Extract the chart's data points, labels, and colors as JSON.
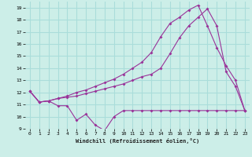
{
  "xlabel": "Windchill (Refroidissement éolien,°C)",
  "bg_color": "#cceee8",
  "grid_color": "#aaddda",
  "line_color": "#993399",
  "xlim": [
    -0.5,
    23.5
  ],
  "ylim": [
    9.0,
    19.5
  ],
  "xticks": [
    0,
    1,
    2,
    3,
    4,
    5,
    6,
    7,
    8,
    9,
    10,
    11,
    12,
    13,
    14,
    15,
    16,
    17,
    18,
    19,
    20,
    21,
    22,
    23
  ],
  "yticks": [
    9,
    10,
    11,
    12,
    13,
    14,
    15,
    16,
    17,
    18,
    19
  ],
  "line1_x": [
    0,
    1,
    2,
    3,
    4,
    5,
    6,
    7,
    8,
    9,
    10,
    11,
    12,
    13,
    14,
    15,
    16,
    17,
    18,
    19,
    20,
    21,
    22,
    23
  ],
  "line1_y": [
    12.1,
    11.2,
    11.3,
    10.9,
    10.9,
    9.7,
    10.2,
    9.3,
    8.85,
    10.0,
    10.5,
    10.5,
    10.5,
    10.5,
    10.5,
    10.5,
    10.5,
    10.5,
    10.5,
    10.5,
    10.5,
    10.5,
    10.5,
    10.5
  ],
  "line2_x": [
    0,
    1,
    2,
    3,
    4,
    5,
    6,
    7,
    8,
    9,
    10,
    11,
    12,
    13,
    14,
    15,
    16,
    17,
    18,
    19,
    20,
    21,
    22,
    23
  ],
  "line2_y": [
    12.1,
    11.2,
    11.3,
    11.5,
    11.6,
    11.7,
    11.9,
    12.1,
    12.3,
    12.5,
    12.7,
    13.0,
    13.3,
    13.5,
    14.0,
    15.2,
    16.5,
    17.5,
    18.2,
    18.9,
    17.5,
    13.7,
    12.5,
    10.5
  ],
  "line3_x": [
    0,
    1,
    2,
    3,
    4,
    5,
    6,
    7,
    8,
    9,
    10,
    11,
    12,
    13,
    14,
    15,
    16,
    17,
    18,
    19,
    20,
    21,
    22,
    23
  ],
  "line3_y": [
    12.1,
    11.2,
    11.3,
    11.5,
    11.7,
    12.0,
    12.2,
    12.5,
    12.8,
    13.1,
    13.5,
    14.0,
    14.5,
    15.3,
    16.6,
    17.7,
    18.2,
    18.8,
    19.2,
    17.5,
    15.7,
    14.2,
    13.0,
    10.5
  ]
}
